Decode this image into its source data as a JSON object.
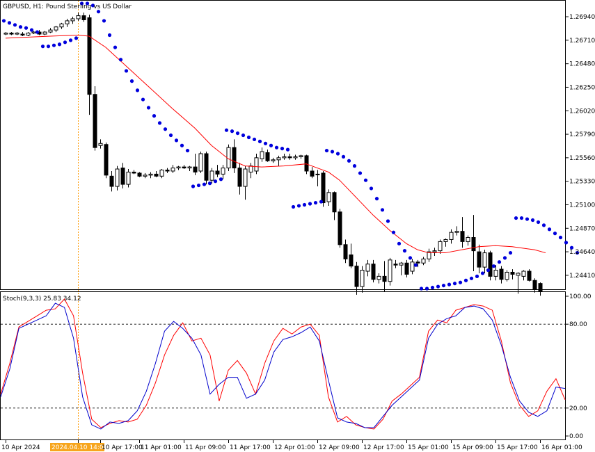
{
  "header": {
    "symbol_title": "GBPUSD, H1:  Pound Sterling vs US Dollar"
  },
  "chart_data": [
    {
      "type": "candlestick",
      "title": "GBPUSD, H1:  Pound Sterling vs US Dollar",
      "ylim": [
        1.2428,
        1.2709
      ],
      "yticks": [
        "1.26940",
        "1.26710",
        "1.26480",
        "1.26250",
        "1.26020",
        "1.25790",
        "1.25560",
        "1.25330",
        "1.25100",
        "1.24870",
        "1.24640",
        "1.24410"
      ],
      "ytick_values": [
        1.2694,
        1.2671,
        1.2648,
        1.2625,
        1.2602,
        1.2579,
        1.2556,
        1.2533,
        1.251,
        1.2487,
        1.2464,
        1.2441
      ],
      "candles": [
        [
          1.2677,
          1.2679,
          1.2676,
          1.2678
        ],
        [
          1.2678,
          1.2679,
          1.2676,
          1.2677
        ],
        [
          1.2677,
          1.2679,
          1.2676,
          1.2678
        ],
        [
          1.2677,
          1.2679,
          1.2675,
          1.2676
        ],
        [
          1.2676,
          1.2679,
          1.2675,
          1.2678
        ],
        [
          1.2678,
          1.268,
          1.2677,
          1.2679
        ],
        [
          1.2679,
          1.2681,
          1.2676,
          1.2677
        ],
        [
          1.2677,
          1.268,
          1.2676,
          1.2679
        ],
        [
          1.2679,
          1.2683,
          1.2678,
          1.2681
        ],
        [
          1.2681,
          1.2685,
          1.2679,
          1.2684
        ],
        [
          1.2684,
          1.2688,
          1.2682,
          1.2687
        ],
        [
          1.2687,
          1.2692,
          1.2684,
          1.269
        ],
        [
          1.269,
          1.2694,
          1.2687,
          1.2692
        ],
        [
          1.2692,
          1.2698,
          1.269,
          1.2695
        ],
        [
          1.2695,
          1.2698,
          1.2689,
          1.2691
        ],
        [
          1.2693,
          1.2696,
          1.2598,
          1.2618
        ],
        [
          1.2618,
          1.2626,
          1.2563,
          1.2566
        ],
        [
          1.2568,
          1.2574,
          1.2565,
          1.257
        ],
        [
          1.2569,
          1.2571,
          1.2536,
          1.2539
        ],
        [
          1.2538,
          1.2543,
          1.2523,
          1.2528
        ],
        [
          1.2528,
          1.2548,
          1.2524,
          1.2545
        ],
        [
          1.2546,
          1.2551,
          1.2526,
          1.253
        ],
        [
          1.253,
          1.2545,
          1.2527,
          1.2542
        ],
        [
          1.2542,
          1.2544,
          1.254,
          1.2541
        ],
        [
          1.2541,
          1.2542,
          1.2537,
          1.2538
        ],
        [
          1.2538,
          1.2541,
          1.2536,
          1.2539
        ],
        [
          1.2539,
          1.2542,
          1.2536,
          1.254
        ],
        [
          1.254,
          1.2543,
          1.2537,
          1.2538
        ],
        [
          1.2538,
          1.2545,
          1.2536,
          1.2544
        ],
        [
          1.2544,
          1.2546,
          1.2541,
          1.2543
        ],
        [
          1.2543,
          1.2549,
          1.2541,
          1.2546
        ],
        [
          1.2546,
          1.2548,
          1.2544,
          1.2547
        ],
        [
          1.2547,
          1.2549,
          1.2545,
          1.2546
        ],
        [
          1.2546,
          1.2548,
          1.2543,
          1.2547
        ],
        [
          1.2547,
          1.256,
          1.2539,
          1.2542
        ],
        [
          1.2543,
          1.2562,
          1.2541,
          1.256
        ],
        [
          1.256,
          1.2562,
          1.253,
          1.2534
        ],
        [
          1.2534,
          1.2546,
          1.2531,
          1.2543
        ],
        [
          1.2543,
          1.2549,
          1.2537,
          1.254
        ],
        [
          1.254,
          1.2549,
          1.2535,
          1.2546
        ],
        [
          1.2546,
          1.2569,
          1.2543,
          1.2566
        ],
        [
          1.2566,
          1.2574,
          1.2541,
          1.2546
        ],
        [
          1.2546,
          1.2551,
          1.252,
          1.2528
        ],
        [
          1.2528,
          1.2548,
          1.2515,
          1.2545
        ],
        [
          1.2542,
          1.2551,
          1.2536,
          1.2548
        ],
        [
          1.2543,
          1.256,
          1.254,
          1.2556
        ],
        [
          1.2555,
          1.2566,
          1.2552,
          1.2562
        ],
        [
          1.2561,
          1.2564,
          1.2552,
          1.2553
        ],
        [
          1.2553,
          1.2556,
          1.2551,
          1.2554
        ],
        [
          1.2554,
          1.2558,
          1.2548,
          1.2556
        ],
        [
          1.2556,
          1.256,
          1.2554,
          1.2557
        ],
        [
          1.2557,
          1.256,
          1.2554,
          1.2556
        ],
        [
          1.2556,
          1.2559,
          1.2554,
          1.2557
        ],
        [
          1.2557,
          1.2559,
          1.2555,
          1.2558
        ],
        [
          1.2558,
          1.2559,
          1.254,
          1.2543
        ],
        [
          1.2543,
          1.2547,
          1.2536,
          1.2538
        ],
        [
          1.254,
          1.2544,
          1.2528,
          1.254
        ],
        [
          1.2541,
          1.2543,
          1.2508,
          1.2512
        ],
        [
          1.2513,
          1.2525,
          1.2509,
          1.2522
        ],
        [
          1.2522,
          1.2523,
          1.2495,
          1.2503
        ],
        [
          1.2503,
          1.2506,
          1.2468,
          1.2471
        ],
        [
          1.2471,
          1.2476,
          1.2453,
          1.2457
        ],
        [
          1.2461,
          1.2472,
          1.2448,
          1.245
        ],
        [
          1.245,
          1.2454,
          1.2422,
          1.243
        ],
        [
          1.243,
          1.245,
          1.2424,
          1.2446
        ],
        [
          1.2445,
          1.2456,
          1.244,
          1.2452
        ],
        [
          1.2452,
          1.2456,
          1.2434,
          1.2437
        ],
        [
          1.2437,
          1.2443,
          1.2433,
          1.244
        ],
        [
          1.244,
          1.2455,
          1.2425,
          1.2435
        ],
        [
          1.2435,
          1.2458,
          1.2431,
          1.2456
        ],
        [
          1.2452,
          1.2456,
          1.2448,
          1.2451
        ],
        [
          1.2451,
          1.2454,
          1.2441,
          1.2453
        ],
        [
          1.2453,
          1.2456,
          1.2439,
          1.2442
        ],
        [
          1.2445,
          1.2457,
          1.2442,
          1.2454
        ],
        [
          1.2454,
          1.2456,
          1.2449,
          1.2453
        ],
        [
          1.2453,
          1.2459,
          1.2451,
          1.2457
        ],
        [
          1.2457,
          1.2467,
          1.2454,
          1.2464
        ],
        [
          1.2464,
          1.2468,
          1.246,
          1.2465
        ],
        [
          1.2465,
          1.2476,
          1.2462,
          1.2474
        ],
        [
          1.2474,
          1.2477,
          1.2469,
          1.2476
        ],
        [
          1.2476,
          1.2486,
          1.2472,
          1.2483
        ],
        [
          1.2483,
          1.2489,
          1.248,
          1.2484
        ],
        [
          1.2484,
          1.2498,
          1.2468,
          1.2474
        ],
        [
          1.2474,
          1.248,
          1.247,
          1.2478
        ],
        [
          1.2478,
          1.25,
          1.2445,
          1.2465
        ],
        [
          1.2464,
          1.2471,
          1.2443,
          1.2449
        ],
        [
          1.2449,
          1.2466,
          1.2443,
          1.2463
        ],
        [
          1.2463,
          1.2465,
          1.2436,
          1.244
        ],
        [
          1.244,
          1.2451,
          1.2436,
          1.2446
        ],
        [
          1.2447,
          1.245,
          1.2433,
          1.2437
        ],
        [
          1.2437,
          1.2446,
          1.2435,
          1.2444
        ],
        [
          1.2444,
          1.2447,
          1.2437,
          1.2442
        ],
        [
          1.2441,
          1.2444,
          1.2423,
          1.2443
        ],
        [
          1.244,
          1.2446,
          1.2436,
          1.2445
        ],
        [
          1.2445,
          1.2447,
          1.2435,
          1.2436
        ],
        [
          1.2436,
          1.2438,
          1.2424,
          1.2427
        ],
        [
          1.2433,
          1.2434,
          1.2421,
          1.2425
        ]
      ],
      "moving_average": {
        "color": "#ff0000",
        "points": [
          [
            0,
            1.2673
          ],
          [
            8,
            1.2675
          ],
          [
            13,
            1.2676
          ],
          [
            15,
            1.2675
          ],
          [
            18,
            1.2664
          ],
          [
            22,
            1.2644
          ],
          [
            26,
            1.2624
          ],
          [
            30,
            1.2604
          ],
          [
            34,
            1.2585
          ],
          [
            37,
            1.2568
          ],
          [
            40,
            1.2555
          ],
          [
            43,
            1.2548
          ],
          [
            46,
            1.2547
          ],
          [
            50,
            1.2548
          ],
          [
            54,
            1.255
          ],
          [
            56,
            1.2546
          ],
          [
            58,
            1.2542
          ],
          [
            60,
            1.2534
          ],
          [
            63,
            1.2517
          ],
          [
            66,
            1.25
          ],
          [
            69,
            1.2485
          ],
          [
            72,
            1.2472
          ],
          [
            74,
            1.2466
          ],
          [
            76,
            1.2463
          ],
          [
            79,
            1.2463
          ],
          [
            82,
            1.2466
          ],
          [
            85,
            1.2469
          ],
          [
            88,
            1.247
          ],
          [
            91,
            1.2469
          ],
          [
            95,
            1.2466
          ],
          [
            97,
            1.2463
          ]
        ]
      },
      "parabolic_sar": {
        "color": "#0000dd",
        "values": [
          1.269,
          1.2688,
          1.2686,
          1.2684,
          1.2683,
          1.2681,
          1.2679,
          1.2665,
          1.2665,
          1.2666,
          1.2667,
          1.2669,
          1.2671,
          1.2673,
          1.2707,
          1.2707,
          1.2705,
          1.2699,
          1.269,
          1.2676,
          1.2664,
          1.2652,
          1.2641,
          1.2631,
          1.2622,
          1.2613,
          1.2605,
          1.2597,
          1.259,
          1.2584,
          1.2578,
          1.2573,
          1.2568,
          1.2563,
          1.2528,
          1.2529,
          1.253,
          1.2531,
          1.2533,
          1.2535,
          1.2583,
          1.2582,
          1.258,
          1.2578,
          1.2576,
          1.2574,
          1.2572,
          1.257,
          1.2568,
          1.2566,
          1.2565,
          1.2564,
          1.2508,
          1.2509,
          1.251,
          1.2511,
          1.2512,
          1.2513,
          1.2563,
          1.2562,
          1.256,
          1.2557,
          1.2553,
          1.2548,
          1.2541,
          1.2534,
          1.2526,
          1.2516,
          1.2505,
          1.2494,
          1.2483,
          1.2472,
          1.2465,
          1.2458,
          1.2451,
          1.2428,
          1.2428,
          1.2429,
          1.243,
          1.2431,
          1.2432,
          1.2433,
          1.2434,
          1.2436,
          1.2438,
          1.244,
          1.2443,
          1.2446,
          1.245,
          1.2454,
          1.2458,
          1.2463,
          1.2497,
          1.2497,
          1.2496,
          1.2495,
          1.2493,
          1.249,
          1.2486,
          1.2482,
          1.2478,
          1.2473,
          1.2468,
          1.2463
        ],
        "start_index": 0
      }
    },
    {
      "type": "line",
      "title": "Stoch(9,3,3) 25.83 34.12",
      "ylim": [
        0,
        100
      ],
      "yticks": [
        "100.00",
        "80.00",
        "20.00",
        "0.00"
      ],
      "ytick_values": [
        100,
        80,
        20,
        0
      ],
      "levels": [
        80,
        20
      ],
      "series": [
        {
          "color": "#ff0000",
          "values": [
            30,
            52,
            78,
            82,
            86,
            90,
            91,
            98,
            86,
            45,
            12,
            6,
            9,
            11,
            10,
            12,
            22,
            38,
            58,
            72,
            81,
            68,
            70,
            58,
            25,
            47,
            54,
            45,
            30,
            52,
            68,
            77,
            73,
            78,
            80,
            72,
            28,
            10,
            14,
            8,
            6,
            5,
            12,
            25,
            30,
            36,
            42,
            75,
            83,
            81,
            90,
            92,
            94,
            93,
            90,
            68,
            38,
            22,
            14,
            18,
            32,
            41,
            26
          ]
        },
        {
          "color": "#0000cc",
          "values": [
            28,
            48,
            77,
            80,
            83,
            86,
            95,
            92,
            70,
            28,
            8,
            5,
            10,
            9,
            11,
            18,
            32,
            52,
            75,
            82,
            77,
            70,
            58,
            30,
            37,
            42,
            42,
            27,
            30,
            40,
            60,
            69,
            71,
            74,
            78,
            68,
            40,
            13,
            10,
            9,
            6,
            6,
            14,
            22,
            28,
            34,
            40,
            70,
            80,
            84,
            86,
            92,
            93,
            91,
            83,
            65,
            42,
            25,
            17,
            14,
            18,
            35,
            34
          ]
        }
      ]
    }
  ],
  "xaxis": {
    "labels": [
      "10 Apr 2024",
      "2024.04.10 14:00",
      "10 Apr 17:00",
      "11 Apr 01:00",
      "11 Apr 09:00",
      "11 Apr 17:00",
      "12 Apr 01:00",
      "12 Apr 09:00",
      "12 Apr 17:00",
      "15 Apr 01:00",
      "15 Apr 09:00",
      "15 Apr 17:00",
      "16 Apr 01:00"
    ],
    "label_candle_index": [
      0,
      13,
      17,
      24,
      32,
      40,
      48,
      56,
      64,
      72,
      80,
      88,
      96
    ],
    "crosshair_label": "2024.04.10 14:00",
    "crosshair_index": 13
  },
  "colors": {
    "background": "#ffffff",
    "frame": "#000000",
    "bull_body": "#ffffff",
    "bear_body": "#000000",
    "crosshair": "#ff9900",
    "crosshair_label_bg": "#f7a51c",
    "level_line": "#000000"
  }
}
